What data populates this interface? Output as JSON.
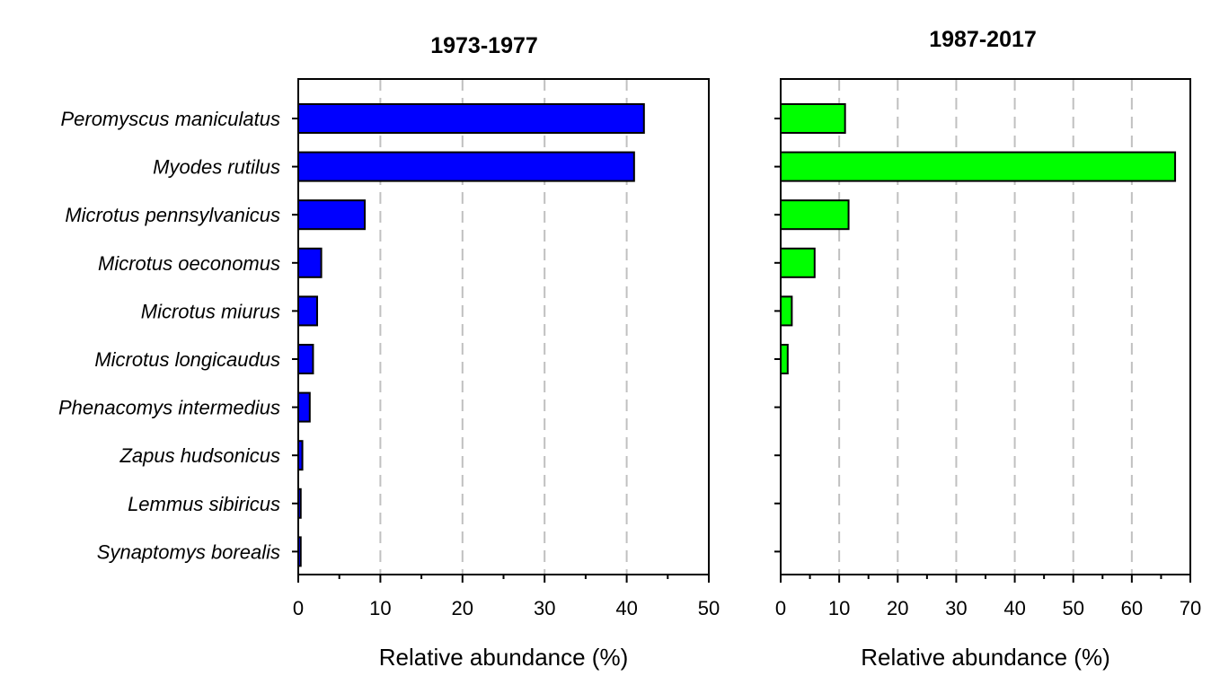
{
  "chart_data": [
    {
      "type": "bar",
      "orientation": "horizontal",
      "title": "1973-1977",
      "xlabel": "Relative abundance (%)",
      "xlim": [
        0,
        50
      ],
      "xticks": [
        0,
        10,
        20,
        30,
        40,
        50
      ],
      "grid": "vertical dashed",
      "bar_color": "#0000ff",
      "categories": [
        "Peromyscus maniculatus",
        "Myodes rutilus",
        "Microtus pennsylvanicus",
        "Microtus oeconomus",
        "Microtus miurus",
        "Microtus longicaudus",
        "Phenacomys intermedius",
        "Zapus hudsonicus",
        "Lemmus sibiricus",
        "Synaptomys borealis"
      ],
      "values": [
        42.1,
        40.9,
        8.1,
        2.8,
        2.3,
        1.8,
        1.4,
        0.5,
        0.3,
        0.3
      ]
    },
    {
      "type": "bar",
      "orientation": "horizontal",
      "title": "1987-2017",
      "xlabel": "Relative abundance (%)",
      "xlim": [
        0,
        70
      ],
      "xticks": [
        0,
        10,
        20,
        30,
        40,
        50,
        60,
        70
      ],
      "grid": "vertical dashed",
      "bar_color": "#00ff00",
      "categories": [
        "Peromyscus maniculatus",
        "Myodes rutilus",
        "Microtus pennsylvanicus",
        "Microtus oeconomus",
        "Microtus miurus",
        "Microtus longicaudus",
        "Phenacomys intermedius",
        "Zapus hudsonicus",
        "Lemmus sibiricus",
        "Synaptomys borealis"
      ],
      "values": [
        11.0,
        67.4,
        11.6,
        5.8,
        1.9,
        1.2,
        0,
        0,
        0,
        0
      ]
    }
  ]
}
